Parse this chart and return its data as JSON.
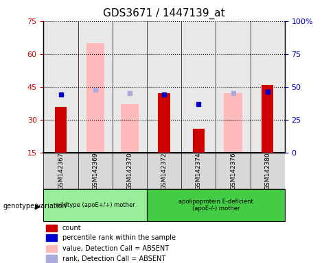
{
  "title": "GDS3671 / 1447139_at",
  "samples": [
    "GSM142367",
    "GSM142369",
    "GSM142370",
    "GSM142372",
    "GSM142374",
    "GSM142376",
    "GSM142380"
  ],
  "count_values": [
    36,
    null,
    null,
    42,
    26,
    null,
    46
  ],
  "count_absent_values": [
    null,
    65,
    37,
    null,
    null,
    42,
    null
  ],
  "percentile_rank": [
    44,
    null,
    null,
    44,
    37,
    null,
    46
  ],
  "rank_absent": [
    null,
    48,
    45,
    null,
    null,
    45,
    null
  ],
  "ylim_left": [
    15,
    75
  ],
  "ylim_right": [
    0,
    100
  ],
  "yticks_left": [
    15,
    30,
    45,
    60,
    75
  ],
  "yticks_right": [
    0,
    25,
    50,
    75,
    100
  ],
  "yticklabels_right": [
    "0",
    "25",
    "50",
    "75",
    "100%"
  ],
  "group1_label": "wildtype (apoE+/+) mother",
  "group2_label": "apolipoprotein E-deficient\n(apoE-/-) mother",
  "genotype_label": "genotype/variation",
  "legend_labels": [
    "count",
    "percentile rank within the sample",
    "value, Detection Call = ABSENT",
    "rank, Detection Call = ABSENT"
  ],
  "bar_color_count": "#cc0000",
  "bar_color_absent": "#ffbbbb",
  "dot_color_rank": "#0000cc",
  "dot_color_rank_absent": "#aaaadd",
  "bg_color": "#ffffff",
  "group1_bg": "#99ee99",
  "group2_bg": "#44cc44",
  "label_area_bg": "#d8d8d8"
}
